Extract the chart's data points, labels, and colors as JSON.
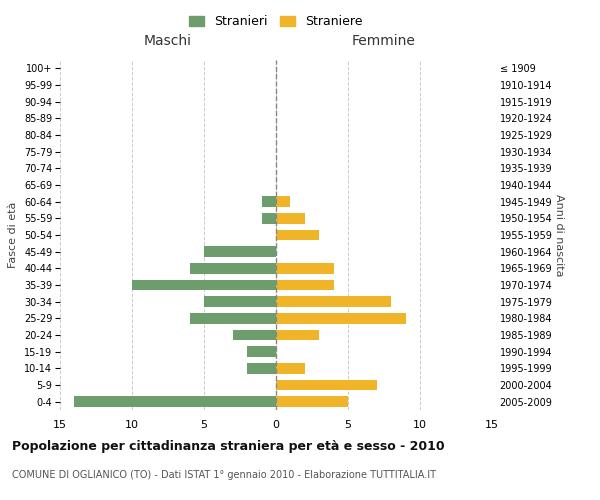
{
  "age_groups": [
    "0-4",
    "5-9",
    "10-14",
    "15-19",
    "20-24",
    "25-29",
    "30-34",
    "35-39",
    "40-44",
    "45-49",
    "50-54",
    "55-59",
    "60-64",
    "65-69",
    "70-74",
    "75-79",
    "80-84",
    "85-89",
    "90-94",
    "95-99",
    "100+"
  ],
  "birth_years": [
    "2005-2009",
    "2000-2004",
    "1995-1999",
    "1990-1994",
    "1985-1989",
    "1980-1984",
    "1975-1979",
    "1970-1974",
    "1965-1969",
    "1960-1964",
    "1955-1959",
    "1950-1954",
    "1945-1949",
    "1940-1944",
    "1935-1939",
    "1930-1934",
    "1925-1929",
    "1920-1924",
    "1915-1919",
    "1910-1914",
    "≤ 1909"
  ],
  "males": [
    14,
    0,
    2,
    2,
    3,
    6,
    5,
    10,
    6,
    5,
    0,
    1,
    1,
    0,
    0,
    0,
    0,
    0,
    0,
    0,
    0
  ],
  "females": [
    5,
    7,
    2,
    0,
    3,
    9,
    8,
    4,
    4,
    0,
    3,
    2,
    1,
    0,
    0,
    0,
    0,
    0,
    0,
    0,
    0
  ],
  "male_color": "#6d9c6d",
  "female_color": "#f0b429",
  "male_label": "Stranieri",
  "female_label": "Straniere",
  "title": "Popolazione per cittadinanza straniera per età e sesso - 2010",
  "subtitle": "COMUNE DI OGLIANICO (TO) - Dati ISTAT 1° gennaio 2010 - Elaborazione TUTTITALIA.IT",
  "xlabel_left": "Maschi",
  "xlabel_right": "Femmine",
  "ylabel_left": "Fasce di età",
  "ylabel_right": "Anni di nascita",
  "xlim": 15,
  "background_color": "#ffffff",
  "grid_color": "#cccccc"
}
